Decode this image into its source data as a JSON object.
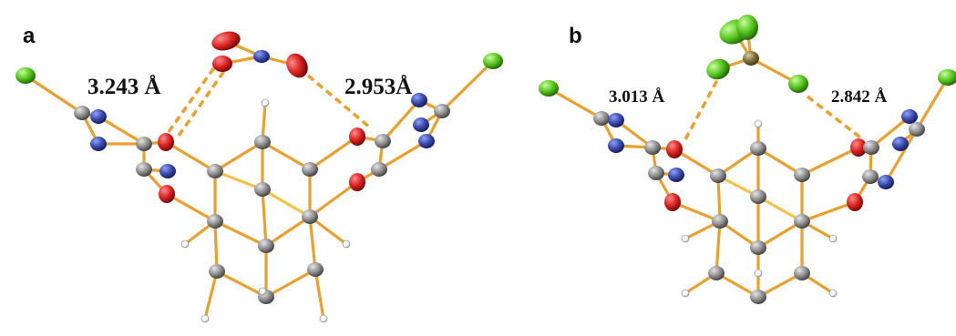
{
  "panels": [
    {
      "label": "a",
      "distances": [
        "3.243 Å",
        "2.953Å"
      ],
      "anion": "nitrate"
    },
    {
      "label": "b",
      "distances": [
        "3.013 Å",
        "2.842 Å"
      ],
      "anion": "trifluoromethyl"
    }
  ],
  "colors": {
    "bond": "#e8a030",
    "bond_secondary": "#f2c24a",
    "carbon": "#8c8c8c",
    "nitrogen": "#3848a8",
    "oxygen": "#d82020",
    "chlorine": "#52c21c",
    "fluorine": "#86d62a",
    "hydrogen": "#ffffff",
    "hbond": "#e8a030"
  }
}
